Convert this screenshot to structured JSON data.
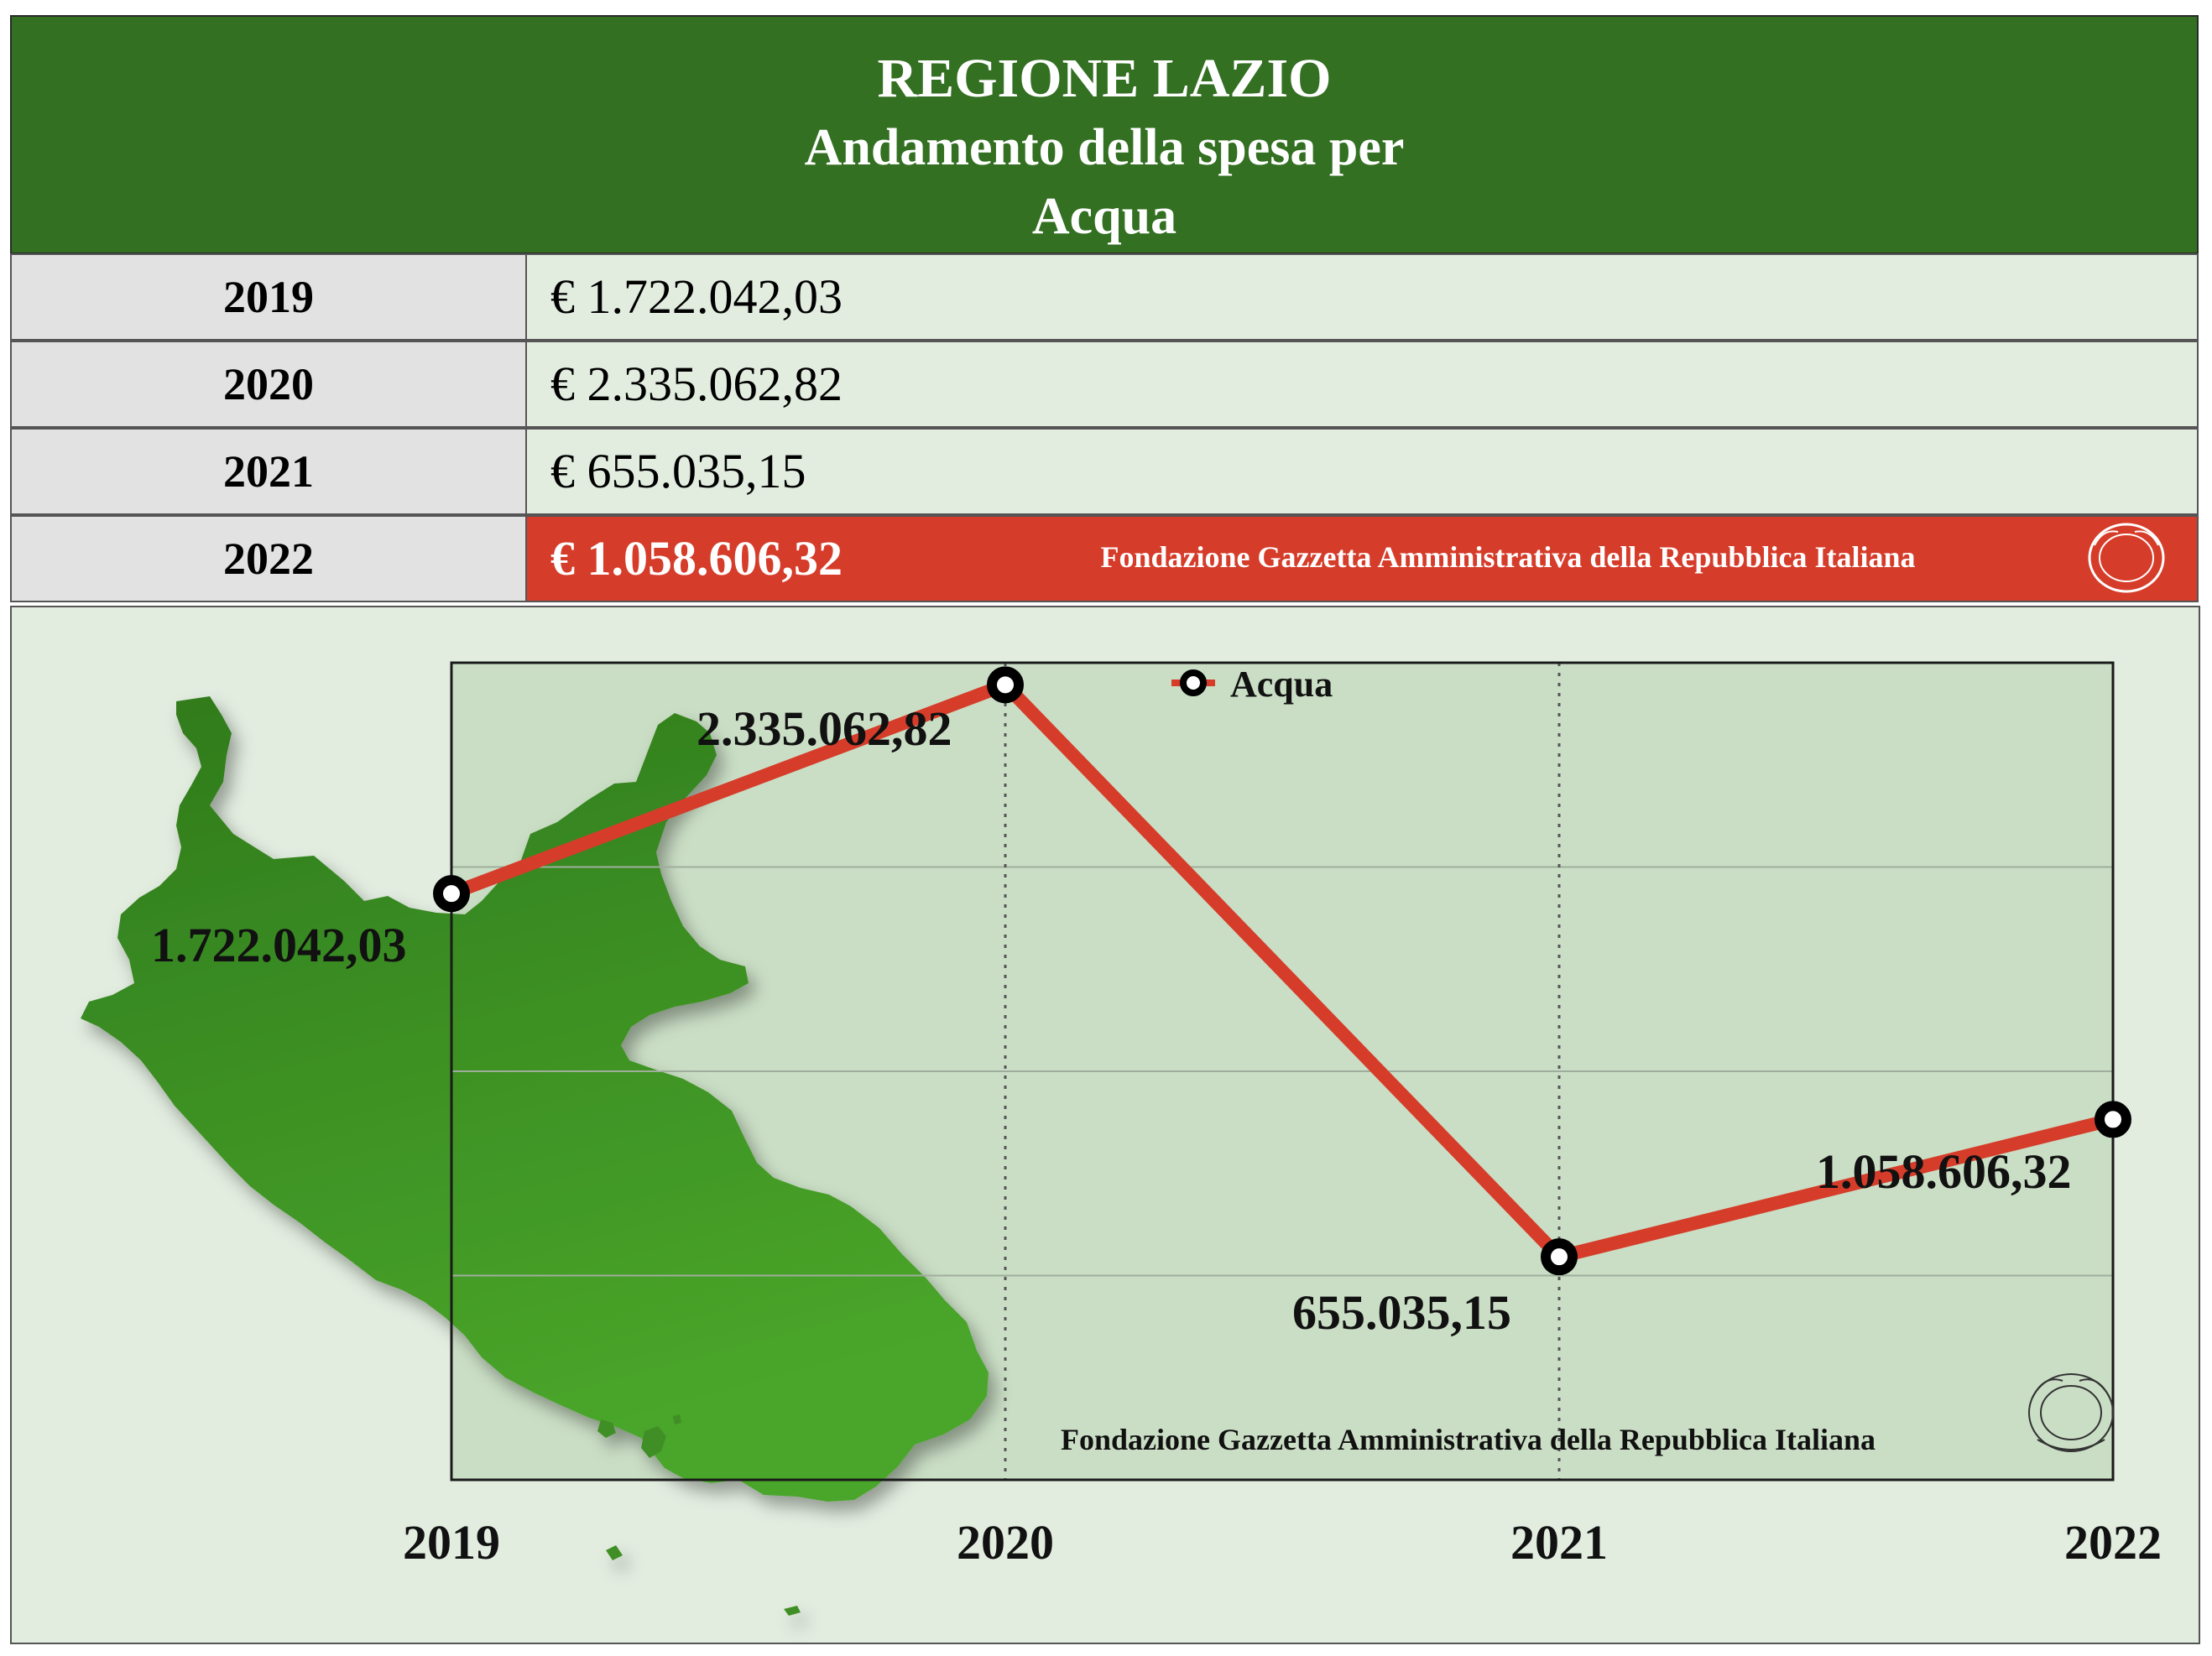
{
  "header": {
    "line1": "REGIONE LAZIO",
    "line2": "Andamento della spesa per",
    "line3": "Acqua"
  },
  "table": {
    "rows": [
      {
        "year": "2019",
        "value": "€ 1.722.042,03"
      },
      {
        "year": "2020",
        "value": "€ 2.335.062,82"
      },
      {
        "year": "2021",
        "value": "€ 655.035,15"
      },
      {
        "year": "2022",
        "value": "€ 1.058.606,32"
      }
    ],
    "foundation": "Fondazione Gazzetta Amministrativa della Repubblica Italiana"
  },
  "chart_data": {
    "type": "line",
    "categories": [
      "2019",
      "2020",
      "2021",
      "2022"
    ],
    "series": [
      {
        "name": "Acqua",
        "values": [
          1722042.03,
          2335062.82,
          655035.15,
          1058606.32
        ]
      }
    ],
    "data_labels": [
      "1.722.042,03",
      "2.335.062,82",
      "655.035,15",
      "1.058.606,32"
    ],
    "ylim": [
      0,
      2400000
    ],
    "grid": true,
    "legend": "top-center",
    "watermark": "Fondazione Gazzetta Amministrativa della Repubblica Italiana",
    "colors": {
      "line": "#d63c2a",
      "plot_bg": "#cadec5",
      "map": "#3f8f25"
    }
  }
}
